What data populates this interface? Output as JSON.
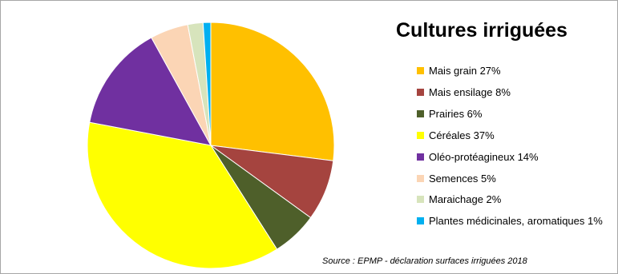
{
  "chart_data": {
    "type": "pie",
    "title": "Cultures irriguées",
    "legend_position": "right",
    "slices": [
      {
        "label": "Mais grain 27%",
        "value": 27,
        "color": "#ffc000"
      },
      {
        "label": "Mais ensilage 8%",
        "value": 8,
        "color": "#a5443f"
      },
      {
        "label": "Prairies 6%",
        "value": 6,
        "color": "#4e5f2a"
      },
      {
        "label": "Céréales 37%",
        "value": 37,
        "color": "#ffff00"
      },
      {
        "label": "Oléo-protéagineux 14%",
        "value": 14,
        "color": "#7030a0"
      },
      {
        "label": "Semences 5%",
        "value": 5,
        "color": "#fbd5b5"
      },
      {
        "label": "Maraichage 2%",
        "value": 2,
        "color": "#d7e4bc"
      },
      {
        "label": "Plantes médicinales, aromatiques 1%",
        "value": 1,
        "color": "#00b0f0"
      }
    ]
  },
  "source": "Source : EPMP - déclaration surfaces irriguées 2018"
}
